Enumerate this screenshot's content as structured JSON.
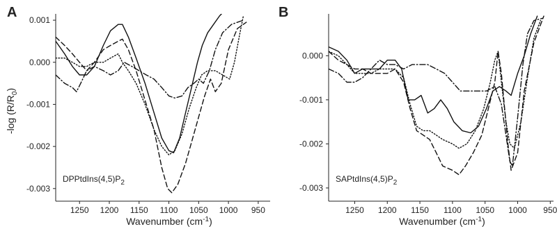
{
  "chart_data": [
    {
      "type": "line",
      "panel": "A",
      "annotation": {
        "main": "DPPtdIns(4,5)P",
        "sub": "2"
      },
      "xlabel": {
        "main": "Wavenumber (cm",
        "sup": "-1",
        "tail": ")"
      },
      "ylabel": {
        "main": "-log (R/R",
        "sub": "0",
        "tail": ")"
      },
      "xlim": [
        1290,
        930
      ],
      "ylim": [
        -0.0033,
        0.00115
      ],
      "xticks": [
        1250,
        1200,
        1150,
        1100,
        1050,
        1000,
        950
      ],
      "xtick_labels": [
        "1250",
        "1200",
        "1150",
        "1100",
        "1050",
        "1000",
        "950"
      ],
      "yticks": [
        0.001,
        0,
        -0.001,
        -0.002,
        -0.003
      ],
      "ytick_labels": [
        "0.001",
        "0.000",
        "-0.001",
        "-0.002",
        "-0.003"
      ],
      "series": [
        {
          "style": "solid",
          "points": [
            [
              1290,
              0.0005
            ],
            [
              1275,
              0.0002
            ],
            [
              1262,
              -0.0001
            ],
            [
              1250,
              -0.0003
            ],
            [
              1238,
              -0.0003
            ],
            [
              1225,
              -0.0001
            ],
            [
              1210,
              0.0004
            ],
            [
              1198,
              0.00075
            ],
            [
              1185,
              0.0009
            ],
            [
              1178,
              0.0009
            ],
            [
              1168,
              0.0006
            ],
            [
              1155,
              0.0001
            ],
            [
              1140,
              -0.0005
            ],
            [
              1125,
              -0.0012
            ],
            [
              1112,
              -0.0018
            ],
            [
              1100,
              -0.0021
            ],
            [
              1092,
              -0.00215
            ],
            [
              1082,
              -0.0018
            ],
            [
              1072,
              -0.0012
            ],
            [
              1062,
              -0.0006
            ],
            [
              1052,
              0.0
            ],
            [
              1044,
              0.0004
            ],
            [
              1035,
              0.0007
            ],
            [
              1025,
              0.0009
            ],
            [
              1015,
              0.0011
            ],
            [
              1005,
              0.00125
            ],
            [
              998,
              0.0013
            ]
          ]
        },
        {
          "style": "dashed",
          "points": [
            [
              1290,
              0.0006
            ],
            [
              1275,
              0.0004
            ],
            [
              1262,
              0.0002
            ],
            [
              1250,
              0.0
            ],
            [
              1238,
              -0.0002
            ],
            [
              1225,
              0.0
            ],
            [
              1210,
              0.0003
            ],
            [
              1198,
              0.0004
            ],
            [
              1185,
              0.0005
            ],
            [
              1178,
              0.00055
            ],
            [
              1168,
              0.0003
            ],
            [
              1155,
              -0.0002
            ],
            [
              1140,
              -0.0009
            ],
            [
              1125,
              -0.0016
            ],
            [
              1112,
              -0.0025
            ],
            [
              1102,
              -0.003
            ],
            [
              1095,
              -0.0031
            ],
            [
              1085,
              -0.0029
            ],
            [
              1072,
              -0.0024
            ],
            [
              1060,
              -0.0018
            ],
            [
              1050,
              -0.0013
            ],
            [
              1040,
              -0.0008
            ],
            [
              1030,
              -0.0004
            ],
            [
              1022,
              -0.0007
            ],
            [
              1012,
              -0.0005
            ],
            [
              1000,
              0.0003
            ],
            [
              985,
              0.0008
            ],
            [
              970,
              0.00095
            ]
          ]
        },
        {
          "style": "dotted",
          "points": [
            [
              1290,
              0.0001
            ],
            [
              1275,
              0.0001
            ],
            [
              1262,
              0.0
            ],
            [
              1250,
              -0.0001
            ],
            [
              1238,
              -0.0001
            ],
            [
              1225,
              0.0
            ],
            [
              1210,
              0.0
            ],
            [
              1198,
              0.0001
            ],
            [
              1185,
              0.0002
            ],
            [
              1178,
              0.0
            ],
            [
              1168,
              -0.0002
            ],
            [
              1155,
              -0.0005
            ],
            [
              1140,
              -0.001
            ],
            [
              1125,
              -0.0016
            ],
            [
              1112,
              -0.002
            ],
            [
              1100,
              -0.0022
            ],
            [
              1090,
              -0.0021
            ],
            [
              1078,
              -0.0017
            ],
            [
              1066,
              -0.0011
            ],
            [
              1054,
              -0.0006
            ],
            [
              1045,
              -0.0003
            ],
            [
              1035,
              -0.0002
            ],
            [
              1022,
              -0.0002
            ],
            [
              1010,
              -0.0003
            ],
            [
              998,
              -0.0004
            ],
            [
              990,
              0.0
            ],
            [
              982,
              0.0006
            ],
            [
              975,
              0.0011
            ]
          ]
        },
        {
          "style": "dashdot",
          "points": [
            [
              1290,
              -0.0003
            ],
            [
              1275,
              -0.0005
            ],
            [
              1262,
              -0.0006
            ],
            [
              1255,
              -0.0007
            ],
            [
              1248,
              -0.0005
            ],
            [
              1238,
              -0.0002
            ],
            [
              1225,
              -0.0001
            ],
            [
              1210,
              -0.0002
            ],
            [
              1198,
              -0.0003
            ],
            [
              1185,
              -0.0002
            ],
            [
              1175,
              0.0
            ],
            [
              1162,
              -0.0001
            ],
            [
              1150,
              -0.0002
            ],
            [
              1138,
              -0.0003
            ],
            [
              1125,
              -0.0004
            ],
            [
              1112,
              -0.0006
            ],
            [
              1100,
              -0.0008
            ],
            [
              1090,
              -0.00085
            ],
            [
              1078,
              -0.0008
            ],
            [
              1068,
              -0.0006
            ],
            [
              1058,
              -0.0005
            ],
            [
              1050,
              -0.0004
            ],
            [
              1042,
              -0.0005
            ],
            [
              1032,
              -0.0002
            ],
            [
              1022,
              0.0003
            ],
            [
              1010,
              0.0007
            ],
            [
              995,
              0.0009
            ],
            [
              975,
              0.001
            ]
          ]
        }
      ]
    },
    {
      "type": "line",
      "panel": "B",
      "annotation": {
        "main": "SAPtdIns(4,5)P",
        "sub": "2"
      },
      "xlabel": {
        "main": "Wavenumber (cm",
        "sup": "-1",
        "tail": ")"
      },
      "ylabel": {
        "main": "",
        "sub": "",
        "tail": ""
      },
      "xlim": [
        1290,
        945
      ],
      "ylim": [
        -0.0033,
        0.00095
      ],
      "xticks": [
        1250,
        1200,
        1150,
        1100,
        1050,
        1000,
        950
      ],
      "xtick_labels": [
        "1250",
        "1200",
        "1150",
        "1100",
        "1050",
        "1000",
        "950"
      ],
      "yticks": [
        0,
        -0.001,
        -0.002,
        -0.003
      ],
      "ytick_labels": [
        "0.000",
        "-0.001",
        "-0.002",
        "-0.003"
      ],
      "series": [
        {
          "style": "solid",
          "points": [
            [
              1290,
              0.0002
            ],
            [
              1275,
              0.0001
            ],
            [
              1262,
              -0.0001
            ],
            [
              1250,
              -0.0004
            ],
            [
              1238,
              -0.0003
            ],
            [
              1225,
              -0.0003
            ],
            [
              1212,
              -0.0003
            ],
            [
              1200,
              -0.0001
            ],
            [
              1188,
              -0.0001
            ],
            [
              1178,
              -0.0003
            ],
            [
              1168,
              -0.001
            ],
            [
              1158,
              -0.001
            ],
            [
              1148,
              -0.0009
            ],
            [
              1138,
              -0.0013
            ],
            [
              1128,
              -0.0012
            ],
            [
              1118,
              -0.001
            ],
            [
              1108,
              -0.0012
            ],
            [
              1098,
              -0.0015
            ],
            [
              1085,
              -0.0017
            ],
            [
              1072,
              -0.00175
            ],
            [
              1060,
              -0.0016
            ],
            [
              1048,
              -0.0012
            ],
            [
              1038,
              -0.0008
            ],
            [
              1028,
              -0.0007
            ],
            [
              1018,
              -0.0008
            ],
            [
              1010,
              -0.0009
            ],
            [
              1000,
              -0.0004
            ],
            [
              990,
              0.0
            ],
            [
              980,
              0.0005
            ],
            [
              970,
              0.0009
            ]
          ]
        },
        {
          "style": "dashed",
          "points": [
            [
              1290,
              0.0001
            ],
            [
              1275,
              -0.0001
            ],
            [
              1262,
              -0.0002
            ],
            [
              1250,
              -0.0003
            ],
            [
              1238,
              -0.0003
            ],
            [
              1225,
              -0.0004
            ],
            [
              1212,
              -0.0004
            ],
            [
              1200,
              -0.0004
            ],
            [
              1188,
              -0.0003
            ],
            [
              1175,
              -0.0006
            ],
            [
              1165,
              -0.0012
            ],
            [
              1155,
              -0.0017
            ],
            [
              1145,
              -0.0018
            ],
            [
              1135,
              -0.0019
            ],
            [
              1125,
              -0.0022
            ],
            [
              1115,
              -0.0025
            ],
            [
              1100,
              -0.0026
            ],
            [
              1090,
              -0.0027
            ],
            [
              1080,
              -0.0025
            ],
            [
              1068,
              -0.0022
            ],
            [
              1055,
              -0.0018
            ],
            [
              1045,
              -0.0012
            ],
            [
              1035,
              -0.0006
            ],
            [
              1030,
              0.0001
            ],
            [
              1025,
              -0.0004
            ],
            [
              1020,
              -0.0012
            ],
            [
              1015,
              -0.002
            ],
            [
              1010,
              -0.0026
            ],
            [
              1000,
              -0.0022
            ],
            [
              990,
              -0.0008
            ],
            [
              975,
              0.0003
            ],
            [
              960,
              0.0009
            ]
          ]
        },
        {
          "style": "dotted",
          "points": [
            [
              1290,
              0.0001
            ],
            [
              1275,
              0.0
            ],
            [
              1262,
              -0.0002
            ],
            [
              1250,
              -0.0004
            ],
            [
              1238,
              -0.0004
            ],
            [
              1225,
              -0.0004
            ],
            [
              1212,
              -0.0003
            ],
            [
              1200,
              -0.0003
            ],
            [
              1188,
              -0.0003
            ],
            [
              1175,
              -0.0005
            ],
            [
              1165,
              -0.0011
            ],
            [
              1155,
              -0.0016
            ],
            [
              1145,
              -0.0017
            ],
            [
              1135,
              -0.0017
            ],
            [
              1125,
              -0.0018
            ],
            [
              1115,
              -0.0019
            ],
            [
              1100,
              -0.002
            ],
            [
              1090,
              -0.0021
            ],
            [
              1078,
              -0.002
            ],
            [
              1065,
              -0.0017
            ],
            [
              1052,
              -0.0012
            ],
            [
              1042,
              -0.0006
            ],
            [
              1035,
              -0.0001
            ],
            [
              1030,
              0.0001
            ],
            [
              1025,
              -0.0006
            ],
            [
              1018,
              -0.0015
            ],
            [
              1012,
              -0.002
            ],
            [
              1005,
              -0.0021
            ],
            [
              995,
              -0.0015
            ],
            [
              985,
              -0.0005
            ],
            [
              975,
              0.0004
            ],
            [
              965,
              0.0008
            ]
          ]
        },
        {
          "style": "dashdot",
          "points": [
            [
              1290,
              -0.0003
            ],
            [
              1275,
              -0.0004
            ],
            [
              1262,
              -0.0006
            ],
            [
              1250,
              -0.0006
            ],
            [
              1238,
              -0.0005
            ],
            [
              1225,
              -0.0003
            ],
            [
              1212,
              -0.0001
            ],
            [
              1200,
              -0.0002
            ],
            [
              1188,
              -0.0002
            ],
            [
              1175,
              -0.0003
            ],
            [
              1162,
              -0.0002
            ],
            [
              1150,
              -0.0002
            ],
            [
              1138,
              -0.0002
            ],
            [
              1125,
              -0.0003
            ],
            [
              1112,
              -0.0004
            ],
            [
              1100,
              -0.0006
            ],
            [
              1088,
              -0.0008
            ],
            [
              1075,
              -0.0008
            ],
            [
              1060,
              -0.0008
            ],
            [
              1048,
              -0.0008
            ],
            [
              1035,
              -0.0007
            ],
            [
              1025,
              -0.0011
            ],
            [
              1018,
              -0.0018
            ],
            [
              1012,
              -0.0024
            ],
            [
              1008,
              -0.0025
            ],
            [
              1000,
              -0.0014
            ],
            [
              992,
              -0.0002
            ],
            [
              985,
              0.0005
            ],
            [
              975,
              0.0008
            ],
            [
              962,
              0.00085
            ]
          ]
        }
      ]
    }
  ]
}
